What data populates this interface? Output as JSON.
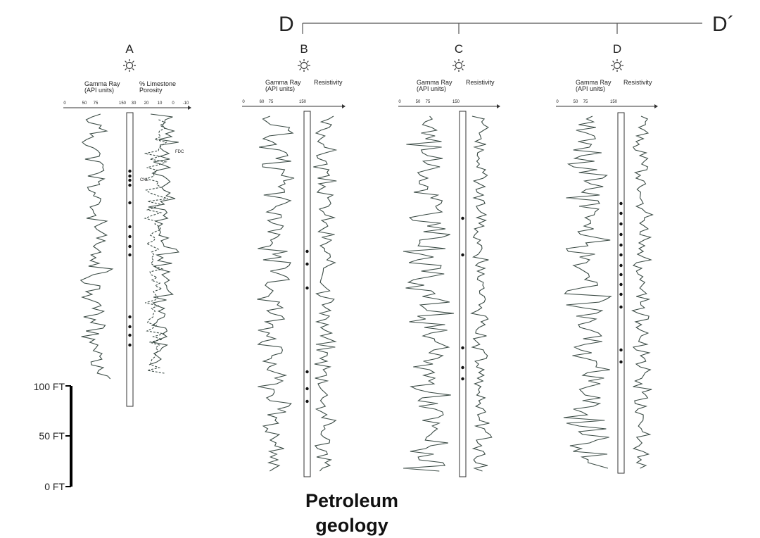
{
  "section": {
    "start": "D",
    "end": "D´"
  },
  "wells": [
    {
      "id": "A",
      "curve1": "Gamma Ray",
      "curve1_unit": "(API units)",
      "curve2": "% Limestone",
      "curve2_unit": "Porosity",
      "scale1": [
        "0",
        "50",
        "75",
        "150"
      ],
      "scale2": [
        "30",
        "20",
        "10",
        "0",
        "-10"
      ],
      "annotations": [
        "FDC",
        "CNL"
      ]
    },
    {
      "id": "B",
      "curve1": "Gamma Ray",
      "curve1_unit": "(API units)",
      "curve2": "Resistivity",
      "curve2_unit": "",
      "scale1": [
        "0",
        "60",
        "75",
        "150"
      ]
    },
    {
      "id": "C",
      "curve1": "Gamma Ray",
      "curve1_unit": "(API units)",
      "curve2": "Resistivity",
      "curve2_unit": "",
      "scale1": [
        "0",
        "50",
        "75",
        "150"
      ]
    },
    {
      "id": "D",
      "curve1": "Gamma Ray",
      "curve1_unit": "(API units)",
      "curve2": "Resistivity",
      "curve2_unit": "",
      "scale1": [
        "0",
        "50",
        "75",
        "150"
      ]
    }
  ],
  "depth_scale": [
    "100 FT",
    "50 FT",
    "0 FT"
  ],
  "caption_line1": "Petroleum",
  "caption_line2": "geology"
}
